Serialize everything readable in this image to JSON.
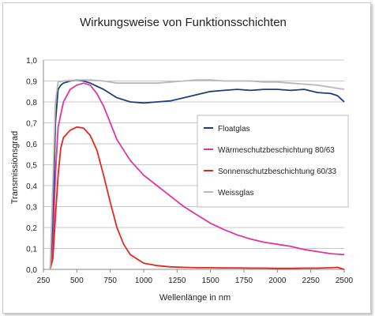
{
  "chart_data": {
    "type": "line",
    "title": "Wirkungsweise von Funktionsschichten",
    "xlabel": "Wellenlänge in nm",
    "ylabel": "Transmissionsgrad",
    "xlim": [
      250,
      2500
    ],
    "ylim": [
      0,
      1.0
    ],
    "x_ticks": [
      250,
      500,
      750,
      1000,
      1250,
      1500,
      1750,
      2000,
      2250,
      2500
    ],
    "y_ticks": [
      "0,0",
      "0,1",
      "0,2",
      "0,3",
      "0,4",
      "0,5",
      "0,6",
      "0,7",
      "0,8",
      "0,9",
      "1,0"
    ],
    "grid": "horizontal",
    "legend_position": "right",
    "series": [
      {
        "name": "Floatglas",
        "color": "#1f3d7a",
        "points": [
          [
            300,
            0.0
          ],
          [
            320,
            0.2
          ],
          [
            340,
            0.7
          ],
          [
            360,
            0.86
          ],
          [
            380,
            0.88
          ],
          [
            400,
            0.89
          ],
          [
            450,
            0.9
          ],
          [
            500,
            0.905
          ],
          [
            550,
            0.9
          ],
          [
            600,
            0.89
          ],
          [
            700,
            0.86
          ],
          [
            800,
            0.82
          ],
          [
            900,
            0.8
          ],
          [
            1000,
            0.795
          ],
          [
            1100,
            0.8
          ],
          [
            1200,
            0.805
          ],
          [
            1300,
            0.82
          ],
          [
            1400,
            0.835
          ],
          [
            1500,
            0.85
          ],
          [
            1600,
            0.855
          ],
          [
            1700,
            0.86
          ],
          [
            1800,
            0.855
          ],
          [
            1900,
            0.86
          ],
          [
            2000,
            0.86
          ],
          [
            2100,
            0.855
          ],
          [
            2200,
            0.86
          ],
          [
            2300,
            0.845
          ],
          [
            2400,
            0.84
          ],
          [
            2450,
            0.83
          ],
          [
            2500,
            0.8
          ]
        ]
      },
      {
        "name": "Wärmeschutzbeschichtung 80/63",
        "color": "#e0359b",
        "points": [
          [
            300,
            0.0
          ],
          [
            320,
            0.1
          ],
          [
            340,
            0.45
          ],
          [
            360,
            0.68
          ],
          [
            400,
            0.8
          ],
          [
            450,
            0.86
          ],
          [
            500,
            0.88
          ],
          [
            550,
            0.89
          ],
          [
            600,
            0.88
          ],
          [
            650,
            0.84
          ],
          [
            700,
            0.78
          ],
          [
            750,
            0.7
          ],
          [
            800,
            0.62
          ],
          [
            900,
            0.52
          ],
          [
            1000,
            0.45
          ],
          [
            1100,
            0.4
          ],
          [
            1200,
            0.35
          ],
          [
            1300,
            0.3
          ],
          [
            1400,
            0.26
          ],
          [
            1500,
            0.22
          ],
          [
            1600,
            0.19
          ],
          [
            1700,
            0.165
          ],
          [
            1800,
            0.145
          ],
          [
            1900,
            0.13
          ],
          [
            2000,
            0.12
          ],
          [
            2100,
            0.11
          ],
          [
            2200,
            0.095
          ],
          [
            2300,
            0.085
          ],
          [
            2400,
            0.075
          ],
          [
            2500,
            0.07
          ]
        ]
      },
      {
        "name": "Sonnenschutzbeschichtung 60/33",
        "color": "#e3281e",
        "points": [
          [
            300,
            0.0
          ],
          [
            320,
            0.05
          ],
          [
            340,
            0.25
          ],
          [
            360,
            0.45
          ],
          [
            380,
            0.58
          ],
          [
            400,
            0.63
          ],
          [
            450,
            0.665
          ],
          [
            500,
            0.68
          ],
          [
            550,
            0.675
          ],
          [
            600,
            0.64
          ],
          [
            650,
            0.57
          ],
          [
            700,
            0.45
          ],
          [
            750,
            0.32
          ],
          [
            800,
            0.2
          ],
          [
            850,
            0.12
          ],
          [
            900,
            0.07
          ],
          [
            1000,
            0.03
          ],
          [
            1100,
            0.018
          ],
          [
            1200,
            0.012
          ],
          [
            1300,
            0.01
          ],
          [
            1400,
            0.008
          ],
          [
            1500,
            0.008
          ],
          [
            1600,
            0.007
          ],
          [
            1700,
            0.007
          ],
          [
            1800,
            0.006
          ],
          [
            1900,
            0.006
          ],
          [
            2000,
            0.005
          ],
          [
            2100,
            0.005
          ],
          [
            2200,
            0.006
          ],
          [
            2300,
            0.006
          ],
          [
            2400,
            0.008
          ],
          [
            2450,
            0.01
          ],
          [
            2500,
            0.0
          ]
        ]
      },
      {
        "name": "Weissglas",
        "color": "#b8b8b8",
        "points": [
          [
            300,
            0.0
          ],
          [
            320,
            0.4
          ],
          [
            340,
            0.8
          ],
          [
            360,
            0.895
          ],
          [
            400,
            0.9
          ],
          [
            500,
            0.905
          ],
          [
            600,
            0.905
          ],
          [
            700,
            0.9
          ],
          [
            800,
            0.89
          ],
          [
            900,
            0.89
          ],
          [
            1000,
            0.89
          ],
          [
            1100,
            0.89
          ],
          [
            1200,
            0.895
          ],
          [
            1300,
            0.9
          ],
          [
            1400,
            0.905
          ],
          [
            1500,
            0.905
          ],
          [
            1600,
            0.9
          ],
          [
            1700,
            0.9
          ],
          [
            1800,
            0.9
          ],
          [
            1900,
            0.895
          ],
          [
            2000,
            0.895
          ],
          [
            2100,
            0.89
          ],
          [
            2200,
            0.885
          ],
          [
            2300,
            0.88
          ],
          [
            2400,
            0.87
          ],
          [
            2500,
            0.86
          ]
        ]
      }
    ]
  }
}
